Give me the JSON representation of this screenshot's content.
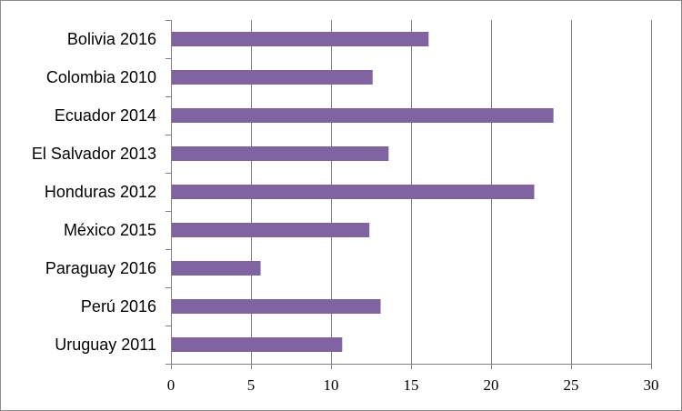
{
  "chart_data": {
    "type": "bar",
    "orientation": "horizontal",
    "categories": [
      "Bolivia 2016",
      "Colombia 2010",
      "Ecuador 2014",
      "El Salvador 2013",
      "Honduras 2012",
      "México 2015",
      "Paraguay 2016",
      "Perú 2016",
      "Uruguay 2011"
    ],
    "values": [
      16.1,
      12.6,
      23.9,
      13.6,
      22.7,
      12.4,
      5.6,
      13.1,
      10.7
    ],
    "xlim": [
      0,
      30
    ],
    "xticks": [
      "0",
      "5",
      "10",
      "15",
      "20",
      "25",
      "30"
    ],
    "grid": "vertical",
    "legend": "none",
    "title": "",
    "xlabel": "",
    "ylabel": "",
    "colors": {
      "bar": "#8064a2",
      "grid": "#808080",
      "axis": "#808080"
    }
  }
}
